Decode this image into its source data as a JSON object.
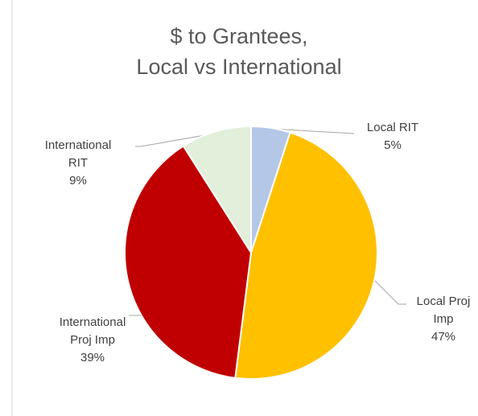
{
  "chart_data": {
    "type": "pie",
    "title": [
      "$ to Grantees,",
      "Local vs International"
    ],
    "categories": [
      "Local RIT",
      "Local Proj Imp",
      "International Proj Imp",
      "International RIT"
    ],
    "values": [
      5,
      47,
      39,
      9
    ],
    "value_labels": [
      "5%",
      "47%",
      "39%",
      "9%"
    ],
    "colors": [
      "#b4c7e7",
      "#ffc000",
      "#c00000",
      "#e2efda"
    ]
  }
}
